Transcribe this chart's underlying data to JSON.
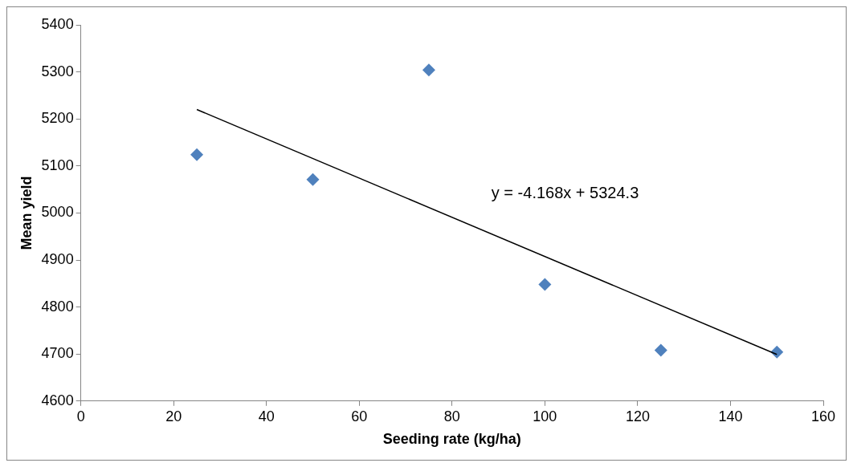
{
  "chart_data": {
    "type": "scatter",
    "xlabel": "Seeding rate (kg/ha)",
    "ylabel": "Mean yield",
    "xlim": [
      0,
      160
    ],
    "xticks": [
      0,
      20,
      40,
      60,
      80,
      100,
      120,
      140,
      160
    ],
    "ylim": [
      4600,
      5400
    ],
    "yticks": [
      4600,
      4700,
      4800,
      4900,
      5000,
      5100,
      5200,
      5300,
      5400
    ],
    "grid": false,
    "legend": false,
    "marker": "diamond",
    "series": [
      {
        "color": "#4f81bd",
        "x": [
          25,
          50,
          75,
          100,
          125,
          150
        ],
        "values": [
          5124,
          5071,
          5304,
          4848,
          4708,
          4704
        ]
      },
      {
        "type": "line",
        "color": "#000000",
        "marker": "none",
        "x": [
          25,
          150
        ],
        "values": [
          5220,
          4699
        ]
      }
    ],
    "annotations": [
      "y = -4.168x + 5324.3"
    ]
  }
}
